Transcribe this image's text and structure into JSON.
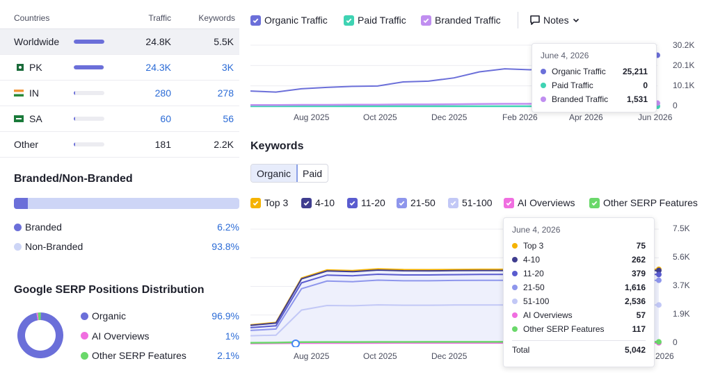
{
  "countries": {
    "headers": {
      "country": "Countries",
      "traffic": "Traffic",
      "keywords": "Keywords"
    },
    "rows": [
      {
        "name": "Worldwide",
        "flag": "",
        "traffic": "24.8K",
        "keywords": "5.5K",
        "share": 1.0,
        "linked": false
      },
      {
        "name": "PK",
        "flag": "pk-flag",
        "traffic": "24.3K",
        "keywords": "3K",
        "share": 0.98,
        "linked": true
      },
      {
        "name": "IN",
        "flag": "in-flag",
        "traffic": "280",
        "keywords": "278",
        "share": 0.02,
        "linked": true
      },
      {
        "name": "SA",
        "flag": "sa-flag",
        "traffic": "60",
        "keywords": "56",
        "share": 0.01,
        "linked": true
      },
      {
        "name": "Other",
        "flag": "",
        "traffic": "181",
        "keywords": "2.2K",
        "share": 0.01,
        "linked": false
      }
    ]
  },
  "branded": {
    "title": "Branded/Non-Branded",
    "branded_label": "Branded",
    "branded_value": "6.2%",
    "branded_fraction": 0.062,
    "nonbranded_label": "Non-Branded",
    "nonbranded_value": "93.8%"
  },
  "serp": {
    "title": "Google SERP Positions Distribution",
    "items": [
      {
        "label": "Organic",
        "value": "96.9%",
        "fraction": 0.969,
        "color": "#6b6fd9"
      },
      {
        "label": "AI Overviews",
        "value": "1%",
        "fraction": 0.01,
        "color": "#f06ee0"
      },
      {
        "label": "Other SERP Features",
        "value": "2.1%",
        "fraction": 0.021,
        "color": "#6ad86a"
      }
    ]
  },
  "traffic_chart": {
    "toggles": [
      {
        "label": "Organic Traffic",
        "color": "#6b6fd9"
      },
      {
        "label": "Paid Traffic",
        "color": "#3fd3b3"
      },
      {
        "label": "Branded Traffic",
        "color": "#c08ef0"
      }
    ],
    "notes_label": "Notes",
    "y_ticks": [
      "30.2K",
      "20.1K",
      "10.1K",
      "0"
    ],
    "x_ticks": [
      "Aug 2025",
      "Oct 2025",
      "Dec 2025",
      "Feb 2026",
      "Apr 2026",
      "Jun 2026"
    ],
    "tooltip": {
      "date": "June 4, 2026",
      "rows": [
        {
          "label": "Organic Traffic",
          "value": "25,211",
          "color": "#6b6fd9"
        },
        {
          "label": "Paid Traffic",
          "value": "0",
          "color": "#3fd3b3"
        },
        {
          "label": "Branded Traffic",
          "value": "1,531",
          "color": "#c08ef0"
        }
      ]
    }
  },
  "keywords": {
    "title": "Keywords",
    "tabs": [
      "Organic",
      "Paid"
    ],
    "legend": [
      {
        "label": "Top 3",
        "color": "#f5b301"
      },
      {
        "label": "4-10",
        "color": "#3f3d8f"
      },
      {
        "label": "11-20",
        "color": "#5a5ccf"
      },
      {
        "label": "21-50",
        "color": "#8e96ec"
      },
      {
        "label": "51-100",
        "color": "#c2c8f6"
      },
      {
        "label": "AI Overviews",
        "color": "#f06ee0"
      },
      {
        "label": "Other SERP Features",
        "color": "#6ad86a"
      }
    ],
    "y_ticks": [
      "7.5K",
      "5.6K",
      "3.7K",
      "1.9K",
      "0"
    ],
    "x_ticks": [
      "Aug 2025",
      "Oct 2025",
      "Dec 2025",
      "2026"
    ],
    "tooltip": {
      "date": "June 4, 2026",
      "rows": [
        {
          "label": "Top 3",
          "value": "75",
          "color": "#f5b301"
        },
        {
          "label": "4-10",
          "value": "262",
          "color": "#3f3d8f"
        },
        {
          "label": "11-20",
          "value": "379",
          "color": "#5a5ccf"
        },
        {
          "label": "21-50",
          "value": "1,616",
          "color": "#8e96ec"
        },
        {
          "label": "51-100",
          "value": "2,536",
          "color": "#c2c8f6"
        },
        {
          "label": "AI Overviews",
          "value": "57",
          "color": "#f06ee0"
        },
        {
          "label": "Other SERP Features",
          "value": "117",
          "color": "#6ad86a"
        }
      ],
      "total_label": "Total",
      "total_value": "5,042"
    }
  },
  "chart_data": [
    {
      "type": "line",
      "ylim": [
        0,
        30200
      ],
      "series": [
        {
          "name": "Organic Traffic",
          "values": [
            7500,
            7000,
            8600,
            9300,
            9800,
            10000,
            12000,
            12400,
            14000,
            17000,
            18500,
            18000,
            19000,
            18000,
            19000,
            20000,
            25211
          ]
        },
        {
          "name": "Paid Traffic",
          "values": [
            0,
            0,
            0,
            0,
            0,
            0,
            0,
            0,
            0,
            0,
            0,
            0,
            0,
            0,
            0,
            0,
            0
          ]
        },
        {
          "name": "Branded Traffic",
          "values": [
            600,
            600,
            700,
            700,
            800,
            800,
            900,
            900,
            1000,
            1100,
            1200,
            1200,
            1300,
            1300,
            1400,
            1450,
            1531
          ]
        }
      ]
    },
    {
      "type": "area",
      "ylim": [
        0,
        7500
      ],
      "series": [
        {
          "name": "Top 3",
          "values": [
            30,
            40,
            60,
            70,
            70,
            75,
            75,
            75,
            75,
            75,
            75,
            75,
            75,
            75,
            75,
            75,
            75
          ]
        },
        {
          "name": "4-10",
          "values": [
            150,
            180,
            260,
            270,
            270,
            275,
            275,
            270,
            265,
            262,
            262,
            262,
            262,
            262,
            262,
            262,
            262
          ]
        },
        {
          "name": "11-20",
          "values": [
            180,
            210,
            380,
            390,
            385,
            385,
            380,
            380,
            379,
            379,
            379,
            379,
            379,
            379,
            379,
            379,
            379
          ]
        },
        {
          "name": "21-50",
          "values": [
            350,
            400,
            1400,
            1600,
            1580,
            1620,
            1600,
            1600,
            1610,
            1616,
            1616,
            1616,
            1616,
            1616,
            1616,
            1616,
            1616
          ]
        },
        {
          "name": "51-100",
          "values": [
            520,
            560,
            2200,
            2500,
            2480,
            2540,
            2520,
            2520,
            2530,
            2536,
            2536,
            2536,
            2536,
            2536,
            2536,
            2536,
            2536
          ]
        },
        {
          "name": "AI Overviews",
          "values": [
            20,
            25,
            40,
            45,
            45,
            50,
            55,
            55,
            56,
            57,
            57,
            57,
            57,
            57,
            57,
            57,
            57
          ]
        },
        {
          "name": "Other SERP Features",
          "values": [
            60,
            70,
            100,
            110,
            110,
            115,
            115,
            116,
            117,
            117,
            117,
            117,
            117,
            117,
            117,
            117,
            117
          ]
        }
      ]
    }
  ]
}
